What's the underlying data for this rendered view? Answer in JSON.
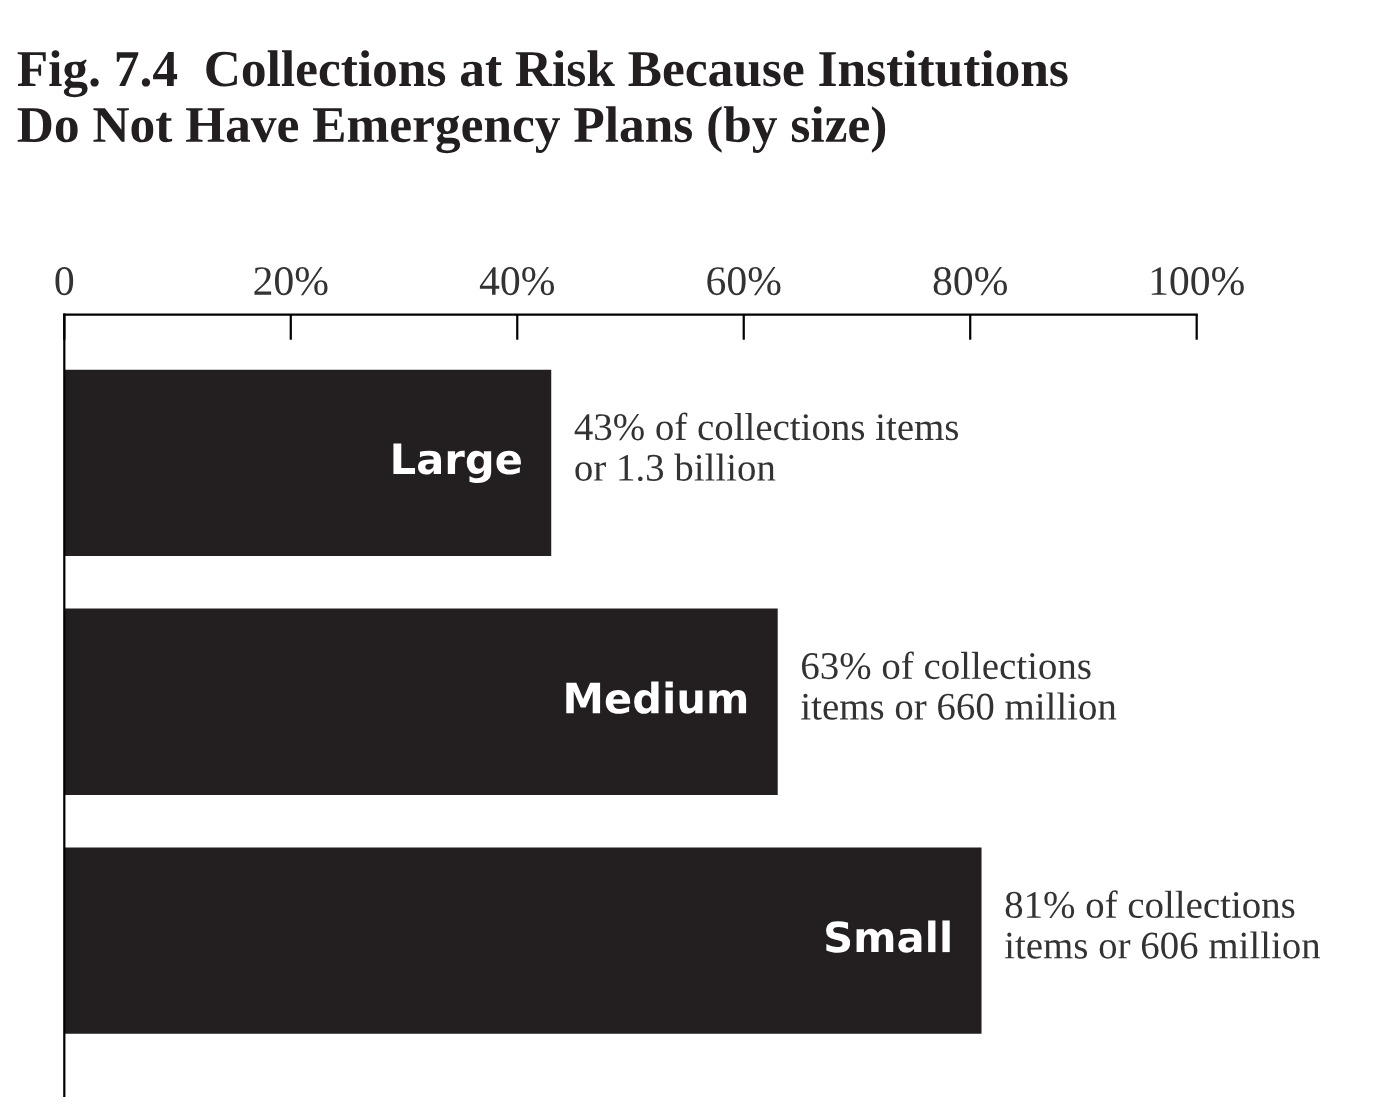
{
  "chart_data": {
    "type": "bar",
    "orientation": "horizontal",
    "title": "Fig. 7.4  Collections at Risk Because Institutions\nDo Not Have Emergency Plans (by size)",
    "categories": [
      "Large",
      "Medium",
      "Small"
    ],
    "values": [
      43,
      63,
      81
    ],
    "color": "#231f20",
    "value_labels": [
      "43% of collections items\nor 1.3 billion",
      "63% of collections\nitems or 660 million",
      "81% of collections\nitems or 606 million"
    ],
    "xlim": [
      0,
      100
    ],
    "xticks": [
      0,
      {
        "value": 20,
        "label": "20%"
      },
      {
        "value": 40,
        "label": "40%"
      },
      {
        "value": 60,
        "label": "60%"
      },
      {
        "value": 80,
        "label": "80%"
      },
      {
        "value": 100,
        "label": "100%"
      }
    ],
    "grid": false,
    "legend": false
  }
}
